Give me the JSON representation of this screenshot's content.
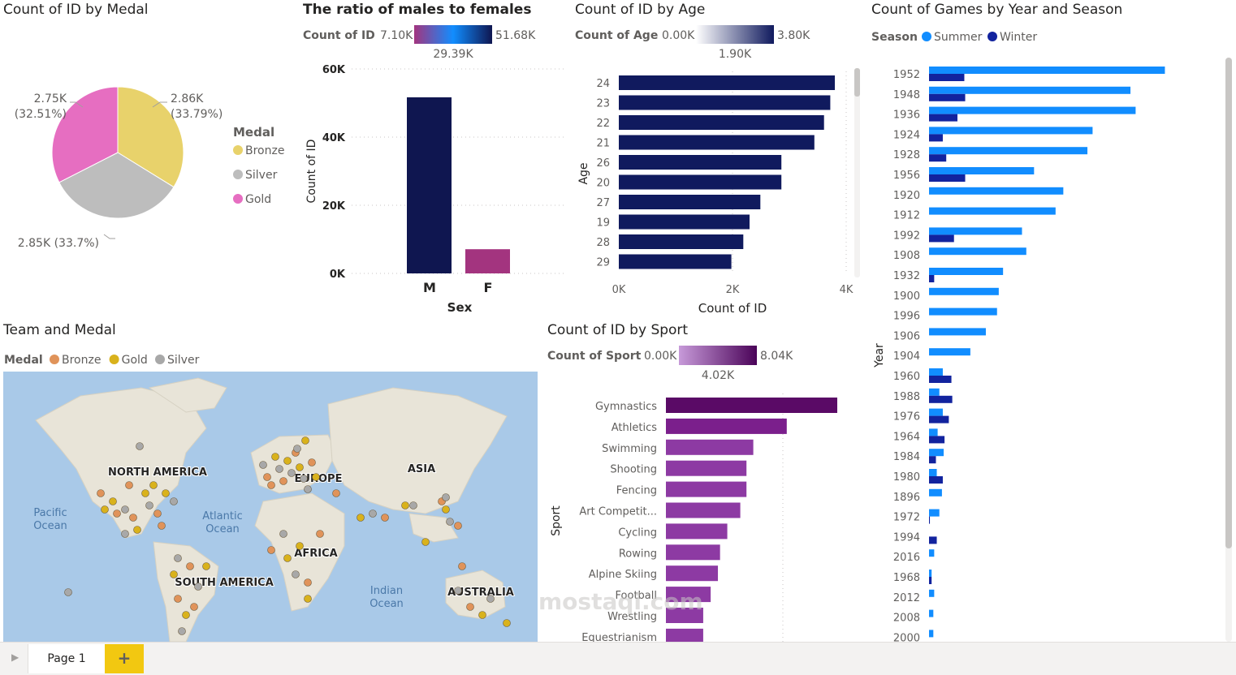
{
  "medal_pie": {
    "title": "Count of ID by Medal",
    "legend_title": "Medal",
    "slices": [
      {
        "name": "Bronze",
        "value_label": "2.86K",
        "pct_label": "(33.79%)",
        "value": 2860,
        "color": "#e8d26b"
      },
      {
        "name": "Silver",
        "value_label": "2.85K (33.7%)",
        "pct_label": "",
        "value": 2850,
        "color": "#bdbdbd"
      },
      {
        "name": "Gold",
        "value_label": "2.75K",
        "pct_label": "(32.51%)",
        "value": 2750,
        "color": "#e66ec1"
      }
    ]
  },
  "sex_chart": {
    "title": "The ratio of males to females",
    "legend_label": "Count of ID",
    "legend_min": "7.10K",
    "legend_mid": "29.39K",
    "legend_max": "51.68K",
    "xlabel": "Sex",
    "ylabel": "Count of ID",
    "yticks": [
      "0K",
      "20K",
      "40K",
      "60K"
    ],
    "ymax": 60000,
    "categories": [
      "M",
      "F"
    ],
    "values": [
      51680,
      7100
    ],
    "colors": [
      "#0f1650",
      "#a3347f"
    ]
  },
  "age_chart": {
    "title": "Count of ID by Age",
    "legend_label": "Count of Age",
    "legend_min": "0.00K",
    "legend_mid": "1.90K",
    "legend_max": "3.80K",
    "ylabel": "Age",
    "xlabel": "Count of ID",
    "xticks": [
      "0K",
      "2K",
      "4K"
    ],
    "xmax": 4000,
    "categories": [
      "24",
      "23",
      "22",
      "21",
      "26",
      "20",
      "27",
      "19",
      "28",
      "29"
    ],
    "values": [
      3800,
      3720,
      3610,
      3440,
      2860,
      2860,
      2490,
      2300,
      2190,
      1980
    ],
    "color": "#101a5e"
  },
  "games_chart": {
    "title": "Count of Games by Year and Season",
    "legend_label": "Season",
    "series_names": [
      "Summer",
      "Winter"
    ],
    "colors": [
      "#118dff",
      "#12239e"
    ],
    "ylabel": "Year",
    "categories": [
      "1952",
      "1948",
      "1936",
      "1924",
      "1928",
      "1956",
      "1920",
      "1912",
      "1992",
      "1908",
      "1932",
      "1900",
      "1996",
      "1906",
      "1904",
      "1960",
      "1988",
      "1976",
      "1964",
      "1984",
      "1980",
      "1896",
      "1972",
      "1994",
      "2016",
      "1968",
      "2012",
      "2008",
      "2000"
    ],
    "summer": [
      274,
      234,
      240,
      190,
      184,
      122,
      156,
      147,
      108,
      113,
      86,
      81,
      79,
      66,
      48,
      16,
      12,
      16,
      10,
      17,
      9,
      15,
      12,
      0,
      6,
      3,
      6,
      5,
      5
    ],
    "winter": [
      41,
      42,
      33,
      16,
      20,
      42,
      0,
      0,
      29,
      0,
      6,
      0,
      0,
      0,
      0,
      26,
      27,
      23,
      18,
      8,
      16,
      0,
      1,
      9,
      0,
      3,
      0,
      0,
      0
    ],
    "xmax": 300
  },
  "map_chart": {
    "title": "Team and Medal",
    "legend_label": "Medal",
    "legend_items": [
      {
        "name": "Bronze",
        "color": "#e0935a"
      },
      {
        "name": "Gold",
        "color": "#d9b21c"
      },
      {
        "name": "Silver",
        "color": "#a8a8a8"
      }
    ],
    "regions": [
      "NORTH AMERICA",
      "EUROPE",
      "ASIA",
      "AFRICA",
      "SOUTH AMERICA",
      "AUSTRALIA"
    ],
    "oceans": [
      "Pacific Ocean",
      "Atlantic Ocean",
      "Indian Ocean"
    ]
  },
  "sport_chart": {
    "title": "Count of ID by Sport",
    "legend_label": "Count of Sport",
    "legend_min": "0.00K",
    "legend_mid": "4.02K",
    "legend_max": "8.04K",
    "ylabel": "Sport",
    "categories": [
      "Gymnastics",
      "Athletics",
      "Swimming",
      "Shooting",
      "Fencing",
      "Art Competit...",
      "Cycling",
      "Rowing",
      "Alpine Skiing",
      "Football",
      "Wrestling",
      "Equestrianism"
    ],
    "values": [
      8040,
      5670,
      4100,
      3780,
      3780,
      3490,
      2880,
      2540,
      2440,
      2100,
      1750,
      1750
    ],
    "xmax": 8040
  },
  "footer": {
    "page_tab": "Page 1",
    "add_tab": "+",
    "watermark": "mostaqi.com"
  }
}
